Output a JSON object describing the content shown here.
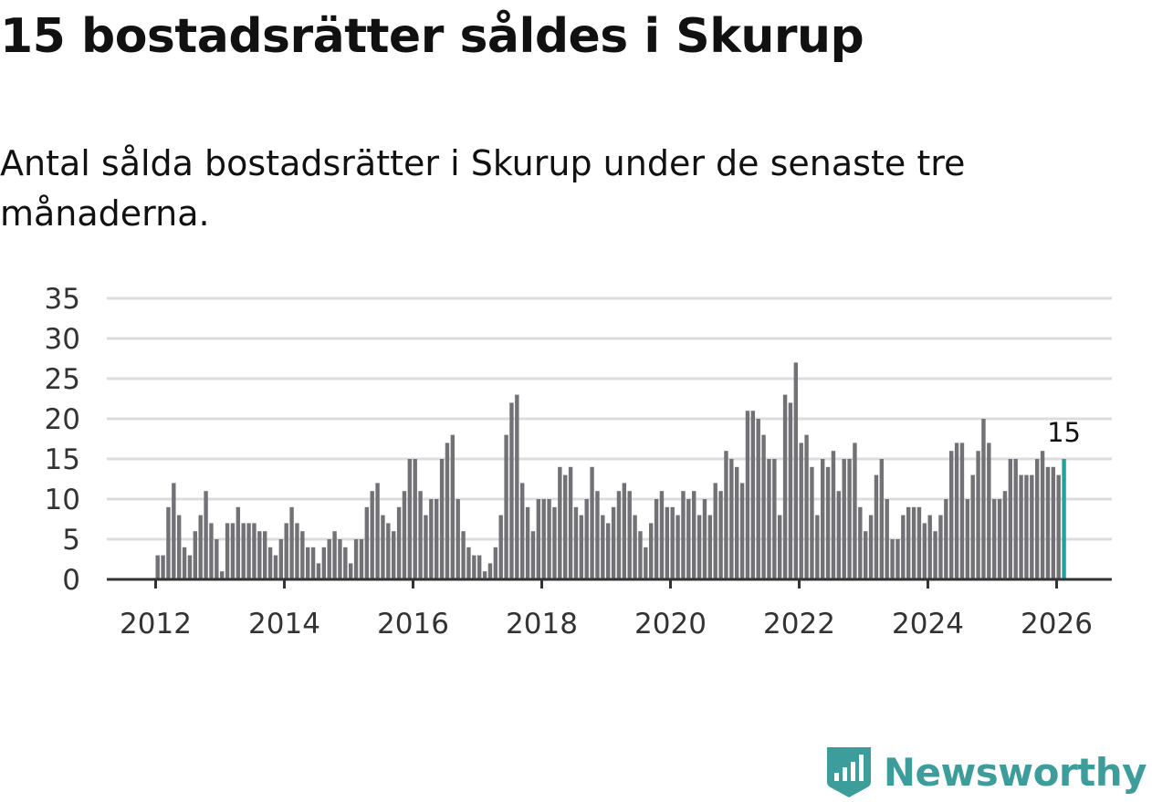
{
  "title": "15 bostadsrätter såldes i Skurup",
  "subtitle": "Antal sålda bostadsrätter i Skurup under de senaste tre månaderna.",
  "brand": {
    "name": "Newsworthy",
    "color": "#3c9d9b",
    "icon": "newsworthy-logo-icon"
  },
  "colors": {
    "bar": "#727176",
    "highlight": "#1fa39c",
    "grid": "#dcdcdc",
    "axis": "#333333"
  },
  "chart_data": {
    "type": "bar",
    "title": "15 bostadsrätter såldes i Skurup",
    "xlabel": "",
    "ylabel": "",
    "ylim": [
      0,
      35
    ],
    "yticks": [
      0,
      5,
      10,
      15,
      20,
      25,
      30,
      35
    ],
    "xticks": [
      "2012",
      "2014",
      "2016",
      "2018",
      "2020",
      "2022",
      "2024",
      "2026"
    ],
    "xticks_values": [
      2012,
      2014,
      2016,
      2018,
      2020,
      2022,
      2024,
      2026
    ],
    "start": {
      "year": 2012,
      "month": 1
    },
    "last_value_label": "15",
    "values": [
      3,
      3,
      9,
      12,
      8,
      4,
      3,
      6,
      8,
      11,
      7,
      5,
      1,
      7,
      7,
      9,
      7,
      7,
      7,
      6,
      6,
      4,
      3,
      5,
      7,
      9,
      7,
      6,
      4,
      4,
      2,
      4,
      5,
      6,
      5,
      4,
      2,
      5,
      5,
      9,
      11,
      12,
      8,
      7,
      6,
      9,
      11,
      15,
      15,
      11,
      8,
      10,
      10,
      15,
      17,
      18,
      10,
      6,
      4,
      3,
      3,
      1,
      2,
      4,
      8,
      18,
      22,
      23,
      12,
      9,
      6,
      10,
      10,
      10,
      9,
      14,
      13,
      14,
      9,
      8,
      10,
      14,
      11,
      8,
      7,
      9,
      11,
      12,
      11,
      8,
      6,
      4,
      7,
      10,
      11,
      9,
      9,
      8,
      11,
      10,
      11,
      8,
      10,
      8,
      12,
      11,
      16,
      15,
      14,
      12,
      21,
      21,
      20,
      18,
      15,
      15,
      8,
      23,
      22,
      27,
      17,
      18,
      14,
      8,
      15,
      14,
      16,
      11,
      15,
      15,
      17,
      9,
      6,
      8,
      13,
      15,
      10,
      5,
      5,
      8,
      9,
      9,
      9,
      7,
      8,
      6,
      8,
      10,
      16,
      17,
      17,
      10,
      13,
      16,
      20,
      17,
      10,
      10,
      11,
      15,
      15,
      13,
      13,
      13,
      15,
      16,
      14,
      14,
      13,
      15
    ]
  }
}
